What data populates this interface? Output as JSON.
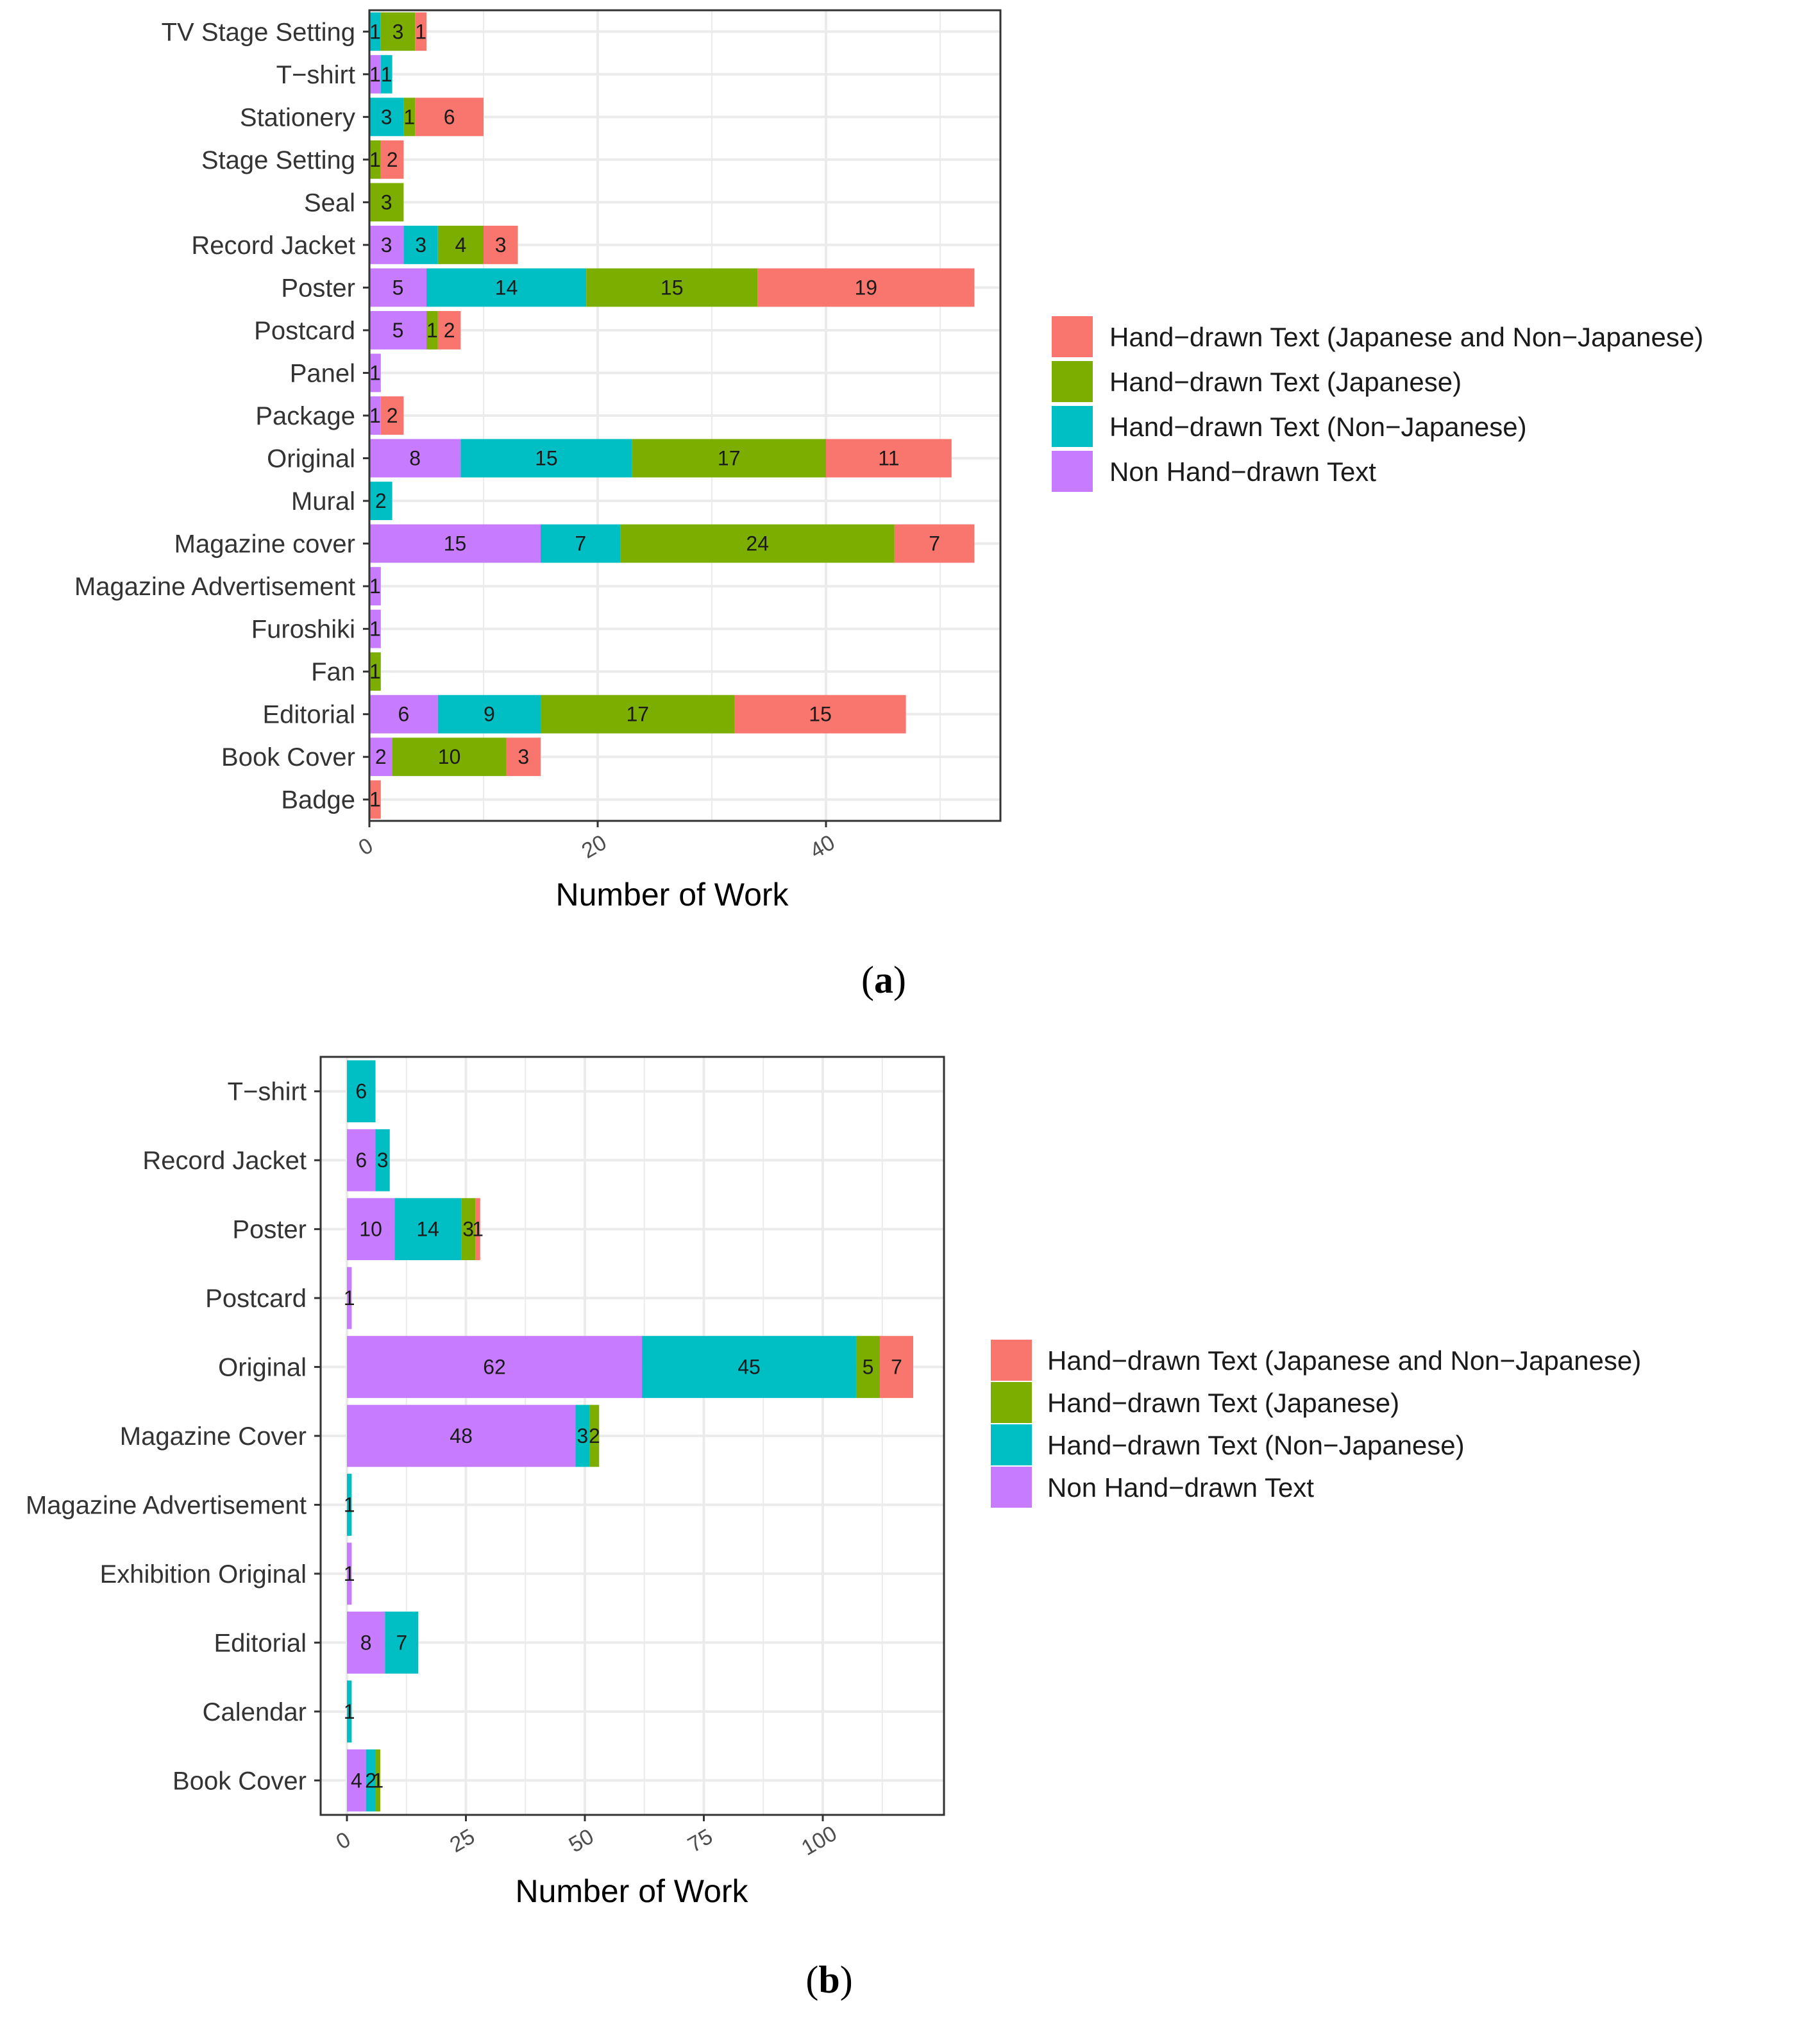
{
  "colors": {
    "jp_and_nonjp": "#F8766D",
    "jp": "#7CAE00",
    "nonjp": "#00BFC4",
    "non_hand": "#C77CFF",
    "grid": "#ebebeb",
    "panel_border": "#333333"
  },
  "legend_a": [
    {
      "key": "jp_and_nonjp",
      "label": "Hand−drawn Text (Japanese and Non−Japanese)"
    },
    {
      "key": "jp",
      "label": "Hand−drawn Text (Japanese)"
    },
    {
      "key": "nonjp",
      "label": "Hand−drawn Text (Non−Japanese)"
    },
    {
      "key": "non_hand",
      "label": "Non Hand−drawn Text"
    }
  ],
  "legend_b": [
    {
      "key": "jp_and_nonjp",
      "label": "Hand−drawn Text (Japanese and Non−Japanese)"
    },
    {
      "key": "jp",
      "label": "Hand−drawn Text (Japanese)"
    },
    {
      "key": "nonjp",
      "label": "Hand−drawn Text (Non−Japanese)"
    },
    {
      "key": "non_hand",
      "label": "Non Hand−drawn Text"
    }
  ],
  "chart_data": [
    {
      "panel": "a",
      "caption_label": "a",
      "type": "bar",
      "orientation": "horizontal",
      "stacked": true,
      "xlabel": "Number of Work",
      "ylabel": "",
      "xlim": [
        0,
        55
      ],
      "xticks": [
        0,
        20,
        40
      ],
      "categories": [
        "TV Stage Setting",
        "T−shirt",
        "Stationery",
        "Stage Setting",
        "Seal",
        "Record Jacket",
        "Poster",
        "Postcard",
        "Panel",
        "Package",
        "Original",
        "Mural",
        "Magazine cover",
        "Magazine Advertisement",
        "Furoshiki",
        "Fan",
        "Editorial",
        "Book Cover",
        "Badge"
      ],
      "series": [
        {
          "key": "non_hand",
          "name": "Non Hand−drawn Text",
          "values": [
            0,
            1,
            0,
            0,
            0,
            3,
            5,
            5,
            1,
            1,
            8,
            0,
            15,
            1,
            1,
            0,
            6,
            2,
            0
          ]
        },
        {
          "key": "nonjp",
          "name": "Hand−drawn Text (Non−Japanese)",
          "values": [
            1,
            1,
            3,
            0,
            0,
            3,
            14,
            0,
            0,
            0,
            15,
            2,
            7,
            0,
            0,
            0,
            9,
            0,
            0
          ]
        },
        {
          "key": "jp",
          "name": "Hand−drawn Text (Japanese)",
          "values": [
            3,
            0,
            1,
            1,
            3,
            4,
            15,
            1,
            0,
            0,
            17,
            0,
            24,
            0,
            0,
            1,
            17,
            10,
            0
          ]
        },
        {
          "key": "jp_and_nonjp",
          "name": "Hand−drawn Text (Japanese and Non−Japanese)",
          "values": [
            1,
            0,
            6,
            2,
            0,
            3,
            19,
            2,
            0,
            2,
            11,
            0,
            7,
            0,
            0,
            0,
            15,
            3,
            1
          ]
        }
      ]
    },
    {
      "panel": "b",
      "caption_label": "b",
      "type": "bar",
      "orientation": "horizontal",
      "stacked": true,
      "xlabel": "Number of Work",
      "ylabel": "",
      "xlim": [
        -6,
        124
      ],
      "xticks": [
        0,
        25,
        50,
        75,
        100
      ],
      "categories": [
        "T−shirt",
        "Record Jacket",
        "Poster",
        "Postcard",
        "Original",
        "Magazine Cover",
        "Magazine Advertisement",
        "Exhibition Original",
        "Editorial",
        "Calendar",
        "Book Cover"
      ],
      "series": [
        {
          "key": "non_hand",
          "name": "Non Hand−drawn Text",
          "values": [
            0,
            6,
            10,
            1,
            62,
            48,
            0,
            1,
            8,
            0,
            4
          ]
        },
        {
          "key": "nonjp",
          "name": "Hand−drawn Text (Non−Japanese)",
          "values": [
            6,
            3,
            14,
            0,
            45,
            3,
            1,
            0,
            7,
            1,
            2
          ]
        },
        {
          "key": "jp",
          "name": "Hand−drawn Text (Japanese)",
          "values": [
            0,
            0,
            3,
            0,
            5,
            2,
            0,
            0,
            0,
            0,
            1
          ]
        },
        {
          "key": "jp_and_nonjp",
          "name": "Hand−drawn Text (Japanese and Non−Japanese)",
          "values": [
            0,
            0,
            1,
            0,
            7,
            0,
            0,
            0,
            0,
            0,
            0
          ]
        }
      ]
    }
  ]
}
